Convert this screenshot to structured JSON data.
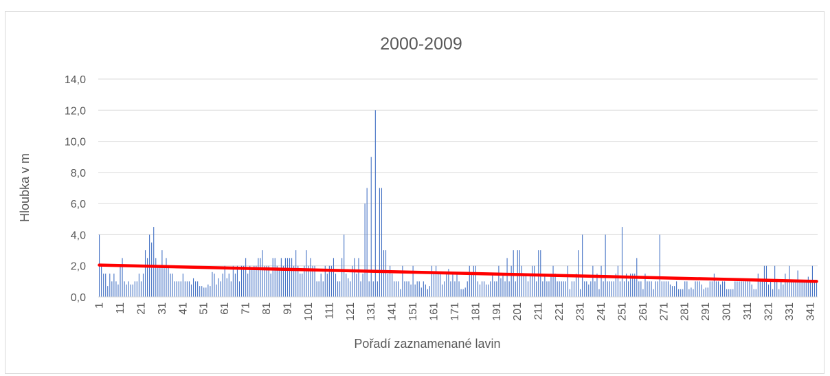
{
  "chart_data": {
    "type": "bar",
    "title": "2000-2009",
    "y_label": "Hloubka v m",
    "x_label": "Pořadí zaznamenané lavin",
    "color": "#4472c4",
    "grid": true,
    "ylim": [
      0,
      14
    ],
    "yticks": [
      {
        "value": 0,
        "label": "0,0"
      },
      {
        "value": 2,
        "label": "2,0"
      },
      {
        "value": 4,
        "label": "4,0"
      },
      {
        "value": 6,
        "label": "6,0"
      },
      {
        "value": 8,
        "label": "8,0"
      },
      {
        "value": 10,
        "label": "10,0"
      },
      {
        "value": 12,
        "label": "12,0"
      },
      {
        "value": 14,
        "label": "14,0"
      }
    ],
    "categories": [
      "1",
      null,
      null,
      null,
      null,
      null,
      null,
      null,
      null,
      null,
      "11",
      null,
      null,
      null,
      null,
      null,
      null,
      null,
      null,
      null,
      "21",
      null,
      null,
      null,
      null,
      null,
      null,
      null,
      null,
      null,
      "31",
      null,
      null,
      null,
      null,
      null,
      null,
      null,
      null,
      null,
      "41",
      null,
      null,
      null,
      null,
      null,
      null,
      null,
      null,
      null,
      "51",
      null,
      null,
      null,
      null,
      null,
      null,
      null,
      null,
      null,
      "61",
      null,
      null,
      null,
      null,
      null,
      null,
      null,
      null,
      null,
      "71",
      null,
      null,
      null,
      null,
      null,
      null,
      null,
      null,
      null,
      "81",
      null,
      null,
      null,
      null,
      null,
      null,
      null,
      null,
      null,
      "91",
      null,
      null,
      null,
      null,
      null,
      null,
      null,
      null,
      null,
      "101",
      null,
      null,
      null,
      null,
      null,
      null,
      null,
      null,
      null,
      "111",
      null,
      null,
      null,
      null,
      null,
      null,
      null,
      null,
      null,
      "121",
      null,
      null,
      null,
      null,
      null,
      null,
      null,
      null,
      null,
      "131",
      null,
      null,
      null,
      null,
      null,
      null,
      null,
      null,
      null,
      "141",
      null,
      null,
      null,
      null,
      null,
      null,
      null,
      null,
      null,
      "151",
      null,
      null,
      null,
      null,
      null,
      null,
      null,
      null,
      null,
      "161",
      null,
      null,
      null,
      null,
      null,
      null,
      null,
      null,
      null,
      "171",
      null,
      null,
      null,
      null,
      null,
      null,
      null,
      null,
      null,
      "181",
      null,
      null,
      null,
      null,
      null,
      null,
      null,
      null,
      null,
      "191",
      null,
      null,
      null,
      null,
      null,
      null,
      null,
      null,
      null,
      "201",
      null,
      null,
      null,
      null,
      null,
      null,
      null,
      null,
      null,
      "211",
      null,
      null,
      null,
      null,
      null,
      null,
      null,
      null,
      null,
      "221",
      null,
      null,
      null,
      null,
      null,
      null,
      null,
      null,
      null,
      "231",
      null,
      null,
      null,
      null,
      null,
      null,
      null,
      null,
      null,
      "241",
      null,
      null,
      null,
      null,
      null,
      null,
      null,
      null,
      null,
      "251",
      null,
      null,
      null,
      null,
      null,
      null,
      null,
      null,
      null,
      "261",
      null,
      null,
      null,
      null,
      null,
      null,
      null,
      null,
      null,
      "271",
      null,
      null,
      null,
      null,
      null,
      null,
      null,
      null,
      null,
      "281",
      null,
      null,
      null,
      null,
      null,
      null,
      null,
      null,
      null,
      "291",
      null,
      null,
      null,
      null,
      null,
      null,
      null,
      null,
      null,
      "301",
      null,
      null,
      null,
      null,
      null,
      null,
      null,
      null,
      null,
      "311",
      null,
      null,
      null,
      null,
      null,
      null,
      null,
      null,
      null,
      "321",
      null,
      null,
      null,
      null,
      null,
      null,
      null,
      null,
      null,
      "331",
      null,
      null,
      null,
      null,
      null,
      null,
      null,
      null,
      null,
      "341",
      null,
      null,
      null
    ],
    "values": [
      4.0,
      2.0,
      1.5,
      1.5,
      0.7,
      1.5,
      1.0,
      1.5,
      1.0,
      0.8,
      2.0,
      2.5,
      1.0,
      0.8,
      1.0,
      0.8,
      0.8,
      1.0,
      1.0,
      1.5,
      1.0,
      1.5,
      3.0,
      2.5,
      4.0,
      3.5,
      4.5,
      2.5,
      2.0,
      2.0,
      3.0,
      2.0,
      2.5,
      2.0,
      1.5,
      1.5,
      1.0,
      1.0,
      1.0,
      1.0,
      1.5,
      1.0,
      1.0,
      1.0,
      0.8,
      1.2,
      1.0,
      1.0,
      0.7,
      0.7,
      0.6,
      0.6,
      0.8,
      0.7,
      1.6,
      1.5,
      0.8,
      1.2,
      1.0,
      1.5,
      2.0,
      1.2,
      1.5,
      1.0,
      2.0,
      1.5,
      2.0,
      1.0,
      2.0,
      2.0,
      2.5,
      1.5,
      2.0,
      1.8,
      2.0,
      2.0,
      2.5,
      2.5,
      3.0,
      2.0,
      2.0,
      2.0,
      1.5,
      2.5,
      2.5,
      2.0,
      1.8,
      2.5,
      2.0,
      2.5,
      2.5,
      2.5,
      2.5,
      2.0,
      3.0,
      2.0,
      1.5,
      1.5,
      2.0,
      3.0,
      2.0,
      2.5,
      2.0,
      2.0,
      1.0,
      1.0,
      1.5,
      1.0,
      2.0,
      1.5,
      2.0,
      2.0,
      2.5,
      1.5,
      1.0,
      1.0,
      2.5,
      4.0,
      1.5,
      1.2,
      1.0,
      2.0,
      2.5,
      1.5,
      2.5,
      1.0,
      1.5,
      6.0,
      7.0,
      1.0,
      9.0,
      1.0,
      12.0,
      1.0,
      7.0,
      7.0,
      3.0,
      3.0,
      1.5,
      2.0,
      1.5,
      1.0,
      1.0,
      1.0,
      0.5,
      2.0,
      1.0,
      1.0,
      1.0,
      0.8,
      2.0,
      0.8,
      1.0,
      1.0,
      0.6,
      1.0,
      0.8,
      0.5,
      0.7,
      2.0,
      1.5,
      2.0,
      1.5,
      1.5,
      0.8,
      1.0,
      1.5,
      1.8,
      1.0,
      1.5,
      1.0,
      1.5,
      1.0,
      0.5,
      0.5,
      0.6,
      1.0,
      2.0,
      1.5,
      2.0,
      2.0,
      1.0,
      0.8,
      1.0,
      1.0,
      0.8,
      0.8,
      1.0,
      1.5,
      1.0,
      1.0,
      2.0,
      1.2,
      1.5,
      1.0,
      2.5,
      1.0,
      2.0,
      3.0,
      1.0,
      3.0,
      3.0,
      2.0,
      1.5,
      1.5,
      1.0,
      1.5,
      2.0,
      2.0,
      1.0,
      3.0,
      3.0,
      1.0,
      1.5,
      1.0,
      1.0,
      1.5,
      2.0,
      1.5,
      1.0,
      1.0,
      1.0,
      1.0,
      1.0,
      2.0,
      0.5,
      1.0,
      1.0,
      1.5,
      3.0,
      0.5,
      4.0,
      1.0,
      1.0,
      0.8,
      1.0,
      2.0,
      1.0,
      1.5,
      0.5,
      2.0,
      1.0,
      4.0,
      1.0,
      1.0,
      1.0,
      1.0,
      1.5,
      2.0,
      1.0,
      4.5,
      1.0,
      1.5,
      1.0,
      1.5,
      1.5,
      1.5,
      2.5,
      1.0,
      1.0,
      0.5,
      1.5,
      1.0,
      1.0,
      1.0,
      0.5,
      1.0,
      1.0,
      4.0,
      1.0,
      1.0,
      1.0,
      1.0,
      0.8,
      0.7,
      0.7,
      1.0,
      0.5,
      0.5,
      0.5,
      1.0,
      1.0,
      0.5,
      0.6,
      0.5,
      1.0,
      1.0,
      1.0,
      0.8,
      0.5,
      0.6,
      0.6,
      1.0,
      1.0,
      1.5,
      1.0,
      1.0,
      0.8,
      1.0,
      1.0,
      0.5,
      0.5,
      0.5,
      0.5,
      1.0,
      1.0,
      1.0,
      1.0,
      1.0,
      1.0,
      1.0,
      1.0,
      0.8,
      0.5,
      0.5,
      1.5,
      1.0,
      1.0,
      2.0,
      2.0,
      0.8,
      1.0,
      0.5,
      2.0,
      1.0,
      0.5,
      1.0,
      0.8,
      1.5,
      1.0,
      2.0,
      1.0,
      1.0,
      1.0,
      1.7,
      1.0,
      1.0,
      1.0,
      1.0,
      1.3,
      1.0,
      2.0,
      1.0,
      1.0
    ],
    "trendline": {
      "color": "#ff0000",
      "values": [
        2.05,
        1.0
      ]
    }
  }
}
